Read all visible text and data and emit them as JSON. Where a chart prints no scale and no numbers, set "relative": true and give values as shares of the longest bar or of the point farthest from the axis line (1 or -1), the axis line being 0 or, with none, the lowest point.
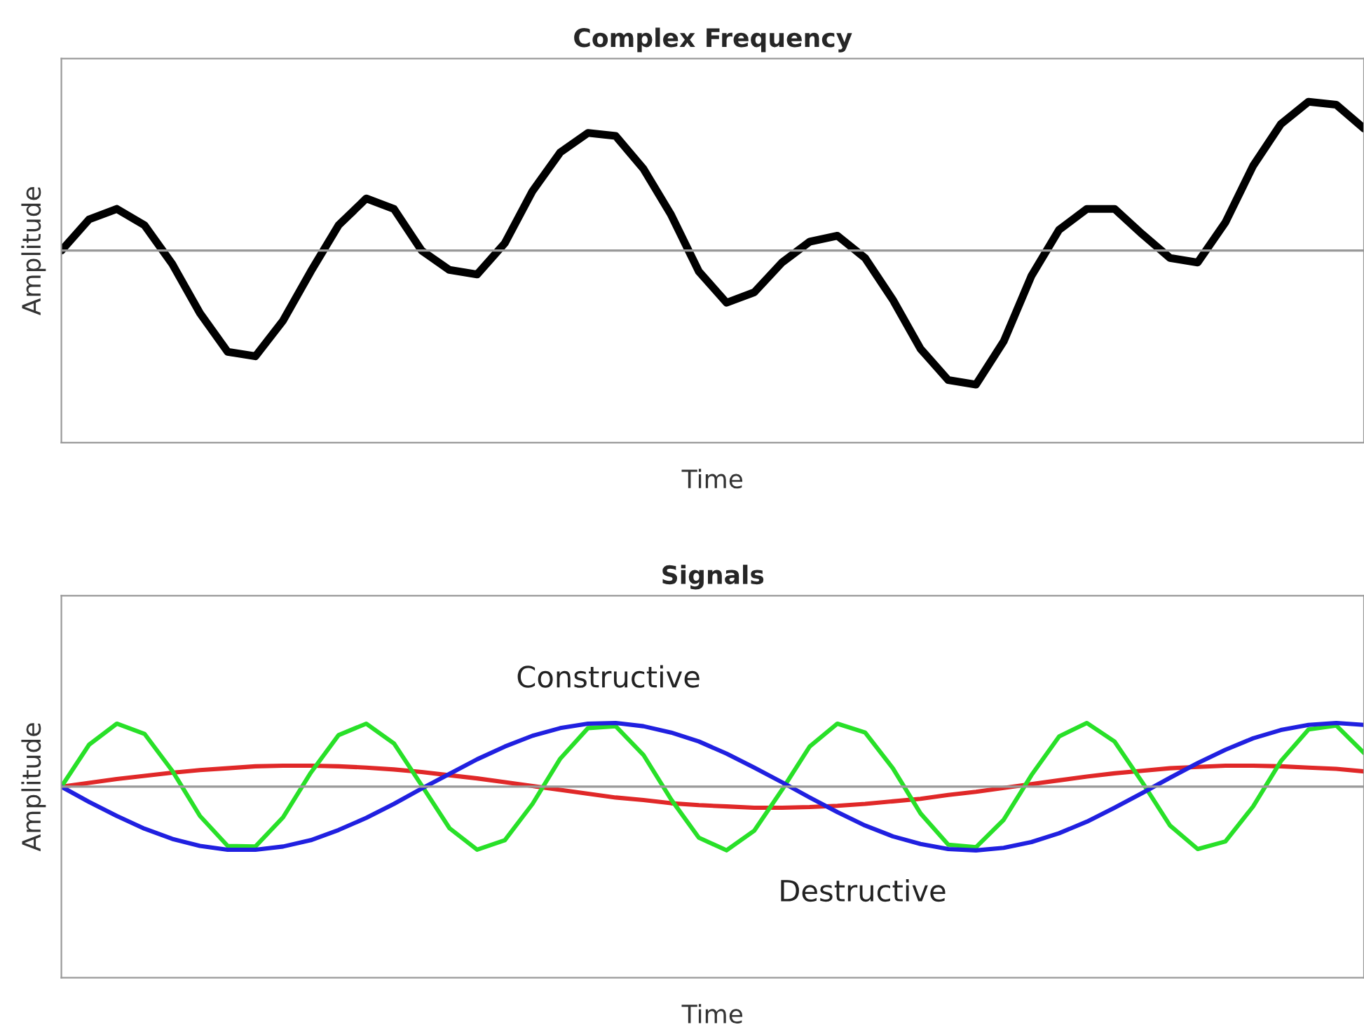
{
  "chart_data": [
    {
      "type": "line",
      "title": "Complex Frequency",
      "xlabel": "Time",
      "ylabel": "Amplitude",
      "relative": true,
      "grid": false,
      "legend": false,
      "marker": "none",
      "line_style": "solid",
      "categories": [
        null,
        null,
        null,
        null,
        null,
        null,
        null,
        null,
        null,
        null,
        null,
        null,
        null,
        null,
        null,
        null,
        null,
        null,
        null,
        null,
        null,
        null,
        null,
        null,
        null,
        null,
        null,
        null,
        null,
        null,
        null,
        null,
        null,
        null,
        null,
        null,
        null,
        null,
        null,
        null,
        null,
        null,
        null,
        null,
        null,
        null,
        null,
        null
      ],
      "series": [
        {
          "color": "#000000",
          "values": [
            0,
            0.21,
            0.28,
            0.17,
            -0.09,
            -0.42,
            -0.68,
            -0.71,
            -0.47,
            -0.14,
            0.17,
            0.35,
            0.28,
            0,
            -0.13,
            -0.16,
            0.05,
            0.4,
            0.66,
            0.79,
            0.77,
            0.55,
            0.24,
            -0.14,
            -0.35,
            -0.28,
            -0.08,
            0.06,
            0.1,
            -0.05,
            -0.33,
            -0.66,
            -0.87,
            -0.9,
            -0.61,
            -0.17,
            0.14,
            0.28,
            0.28,
            0.11,
            -0.05,
            -0.08,
            0.19,
            0.57,
            0.85,
            1,
            0.98,
            0.82
          ]
        }
      ]
    },
    {
      "type": "line",
      "title": "Signals",
      "xlabel": "Time",
      "ylabel": "Amplitude",
      "relative": true,
      "grid": false,
      "legend": false,
      "marker": "none",
      "line_style": "solid",
      "annotations": [
        "Constructive",
        "Destructive"
      ],
      "categories": [
        null,
        null,
        null,
        null,
        null,
        null,
        null,
        null,
        null,
        null,
        null,
        null,
        null,
        null,
        null,
        null,
        null,
        null,
        null,
        null,
        null,
        null,
        null,
        null,
        null,
        null,
        null,
        null,
        null,
        null,
        null,
        null,
        null,
        null,
        null,
        null,
        null,
        null,
        null,
        null,
        null,
        null,
        null,
        null,
        null,
        null,
        null,
        null
      ],
      "series": [
        {
          "color": "#e02828",
          "values": [
            0,
            0.06,
            0.12,
            0.17,
            0.22,
            0.26,
            0.29,
            0.32,
            0.33,
            0.33,
            0.32,
            0.3,
            0.27,
            0.23,
            0.18,
            0.13,
            0.07,
            0.01,
            -0.05,
            -0.11,
            -0.17,
            -0.21,
            -0.26,
            -0.29,
            -0.31,
            -0.33,
            -0.33,
            -0.32,
            -0.3,
            -0.27,
            -0.23,
            -0.19,
            -0.13,
            -0.08,
            -0.02,
            0.04,
            0.1,
            0.16,
            0.21,
            0.25,
            0.29,
            0.31,
            0.33,
            0.33,
            0.32,
            0.3,
            0.28,
            0.24
          ]
        },
        {
          "color": "#28e028",
          "values": [
            0,
            0.66,
            0.99,
            0.83,
            0.25,
            -0.46,
            -0.93,
            -0.94,
            -0.48,
            0.22,
            0.81,
            0.99,
            0.68,
            0.02,
            -0.65,
            -0.99,
            -0.84,
            -0.27,
            0.44,
            0.92,
            0.95,
            0.5,
            -0.2,
            -0.8,
            -1,
            -0.69,
            -0.05,
            0.63,
            0.99,
            0.85,
            0.29,
            -0.42,
            -0.91,
            -0.95,
            -0.52,
            0.18,
            0.79,
            1,
            0.71,
            0.07,
            -0.61,
            -0.98,
            -0.86,
            -0.31,
            0.4,
            0.9,
            0.96,
            0.53
          ]
        },
        {
          "color": "#2020e0",
          "values": [
            0,
            -0.24,
            -0.46,
            -0.66,
            -0.82,
            -0.93,
            -0.99,
            -0.99,
            -0.94,
            -0.84,
            -0.68,
            -0.49,
            -0.27,
            -0.03,
            0.2,
            0.43,
            0.63,
            0.8,
            0.92,
            0.99,
            1,
            0.95,
            0.85,
            0.71,
            0.52,
            0.3,
            0.07,
            -0.17,
            -0.4,
            -0.61,
            -0.78,
            -0.9,
            -0.98,
            -1,
            -0.96,
            -0.87,
            -0.73,
            -0.55,
            -0.33,
            -0.1,
            0.14,
            0.37,
            0.58,
            0.76,
            0.89,
            0.97,
            1,
            0.97
          ]
        }
      ]
    }
  ]
}
